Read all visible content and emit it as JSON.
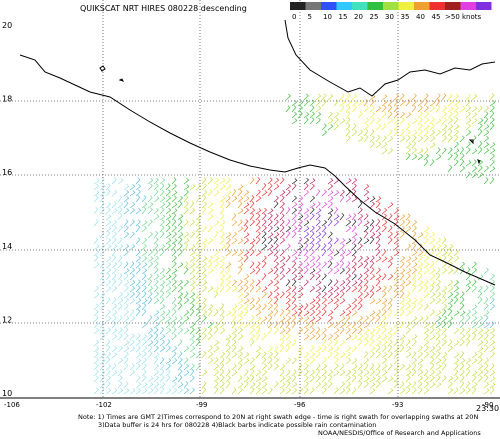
{
  "header": {
    "title": "QUIKSCAT NRT HIRES 080228 descending"
  },
  "color_scale": {
    "labels": [
      "0",
      "5",
      "10",
      "15",
      "20",
      "25",
      "30",
      "35",
      "40",
      "45",
      ">50 knots"
    ]
  },
  "lat_labels": [
    20,
    18,
    16,
    14,
    12,
    10
  ],
  "lon_labels": [
    "-106",
    "-102",
    "-99",
    "-96",
    "-93",
    "-90"
  ],
  "time": "23:30",
  "notes": [
    "Note: 1) Times are GMT 2)Times correspond to 20N at right swath edge - time is right swath for overlapping swaths at 20N",
    "3)Data buffer is 24 hrs for 080228 4)Black barbs indicate possible rain contamination",
    "NOAA/NESDIS/Office of Research and Applications"
  ]
}
